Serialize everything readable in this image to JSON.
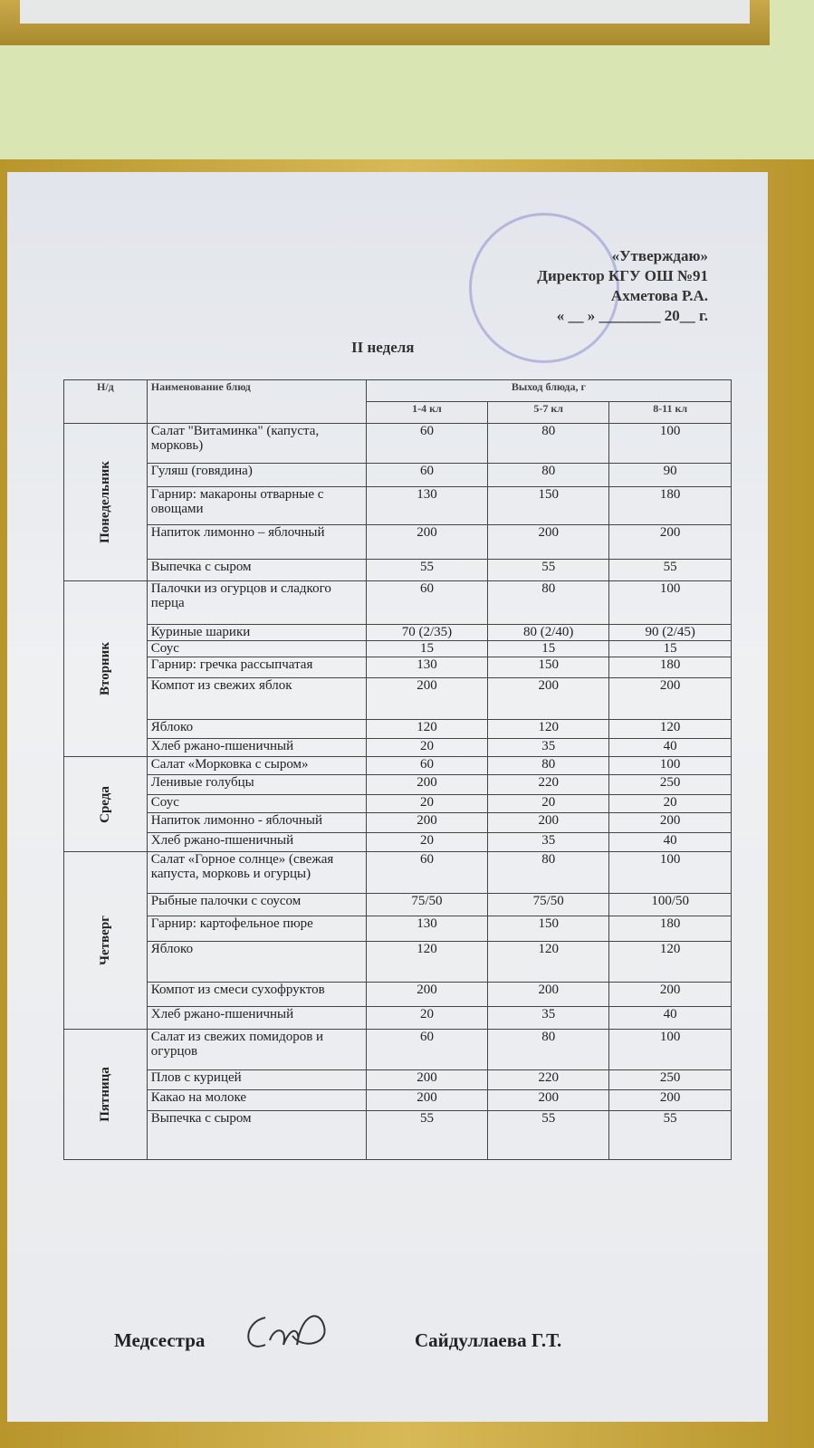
{
  "approval": {
    "line1": "«Утверждаю»",
    "line2": "Директор КГУ ОШ №91",
    "line3": "Ахметова Р.А.",
    "line4": "« __ » ________ 20__ г."
  },
  "title": "II неделя",
  "table": {
    "headers": {
      "num": "Н/д",
      "name": "Наименование блюд",
      "yield": "Выход блюда, г",
      "g1": "1-4 кл",
      "g2": "5-7 кл",
      "g3": "8-11 кл"
    },
    "days": [
      {
        "day": "Понедельник",
        "items": [
          {
            "name": "Салат \"Витаминка\" (капуста, морковь)",
            "v": [
              "60",
              "80",
              "100"
            ]
          },
          {
            "name": "Гуляш (говядина)",
            "v": [
              "60",
              "80",
              "90"
            ]
          },
          {
            "name": "Гарнир: макароны отварные с овощами",
            "v": [
              "130",
              "150",
              "180"
            ]
          },
          {
            "name": "Напиток лимонно – яблочный",
            "v": [
              "200",
              "200",
              "200"
            ]
          },
          {
            "name": "Выпечка с сыром",
            "v": [
              "55",
              "55",
              "55"
            ]
          }
        ]
      },
      {
        "day": "Вторник",
        "items": [
          {
            "name": "Палочки из огурцов и сладкого перца",
            "v": [
              "60",
              "80",
              "100"
            ]
          },
          {
            "name": "Куриные шарики",
            "v": [
              "70 (2/35)",
              "80 (2/40)",
              "90 (2/45)"
            ]
          },
          {
            "name": "Соус",
            "v": [
              "15",
              "15",
              "15"
            ]
          },
          {
            "name": "Гарнир: гречка рассыпчатая",
            "v": [
              "130",
              "150",
              "180"
            ]
          },
          {
            "name": "Компот из свежих яблок",
            "v": [
              "200",
              "200",
              "200"
            ]
          },
          {
            "name": "Яблоко",
            "v": [
              "120",
              "120",
              "120"
            ]
          },
          {
            "name": "Хлеб ржано-пшеничный",
            "v": [
              "20",
              "35",
              "40"
            ]
          }
        ]
      },
      {
        "day": "Среда",
        "items": [
          {
            "name": "Салат «Морковка с сыром»",
            "v": [
              "60",
              "80",
              "100"
            ]
          },
          {
            "name": "Ленивые голубцы",
            "v": [
              "200",
              "220",
              "250"
            ]
          },
          {
            "name": "Соус",
            "v": [
              "20",
              "20",
              "20"
            ]
          },
          {
            "name": "Напиток лимонно - яблочный",
            "v": [
              "200",
              "200",
              "200"
            ]
          },
          {
            "name": "Хлеб ржано-пшеничный",
            "v": [
              "20",
              "35",
              "40"
            ]
          }
        ]
      },
      {
        "day": "Четверг",
        "items": [
          {
            "name": "Салат «Горное солнце» (свежая капуста, морковь и огурцы)",
            "v": [
              "60",
              "80",
              "100"
            ]
          },
          {
            "name": "Рыбные палочки с соусом",
            "v": [
              "75/50",
              "75/50",
              "100/50"
            ]
          },
          {
            "name": "Гарнир:  картофельное пюре",
            "v": [
              "130",
              "150",
              "180"
            ]
          },
          {
            "name": "Яблоко",
            "v": [
              "120",
              "120",
              "120"
            ]
          },
          {
            "name": "Компот из смеси сухофруктов",
            "v": [
              "200",
              "200",
              "200"
            ]
          },
          {
            "name": "Хлеб ржано-пшеничный",
            "v": [
              "20",
              "35",
              "40"
            ]
          }
        ]
      },
      {
        "day": "Пятница",
        "items": [
          {
            "name": "Салат из свежих помидоров и огурцов",
            "v": [
              "60",
              "80",
              "100"
            ]
          },
          {
            "name": "Плов с курицей",
            "v": [
              "200",
              "220",
              "250"
            ]
          },
          {
            "name": "Какао на молоке",
            "v": [
              "200",
              "200",
              "200"
            ]
          },
          {
            "name": "Выпечка с сыром",
            "v": [
              "55",
              "55",
              "55"
            ]
          }
        ]
      }
    ]
  },
  "footer": {
    "role": "Медсестра",
    "name": "Сайдуллаева Г.Т."
  }
}
